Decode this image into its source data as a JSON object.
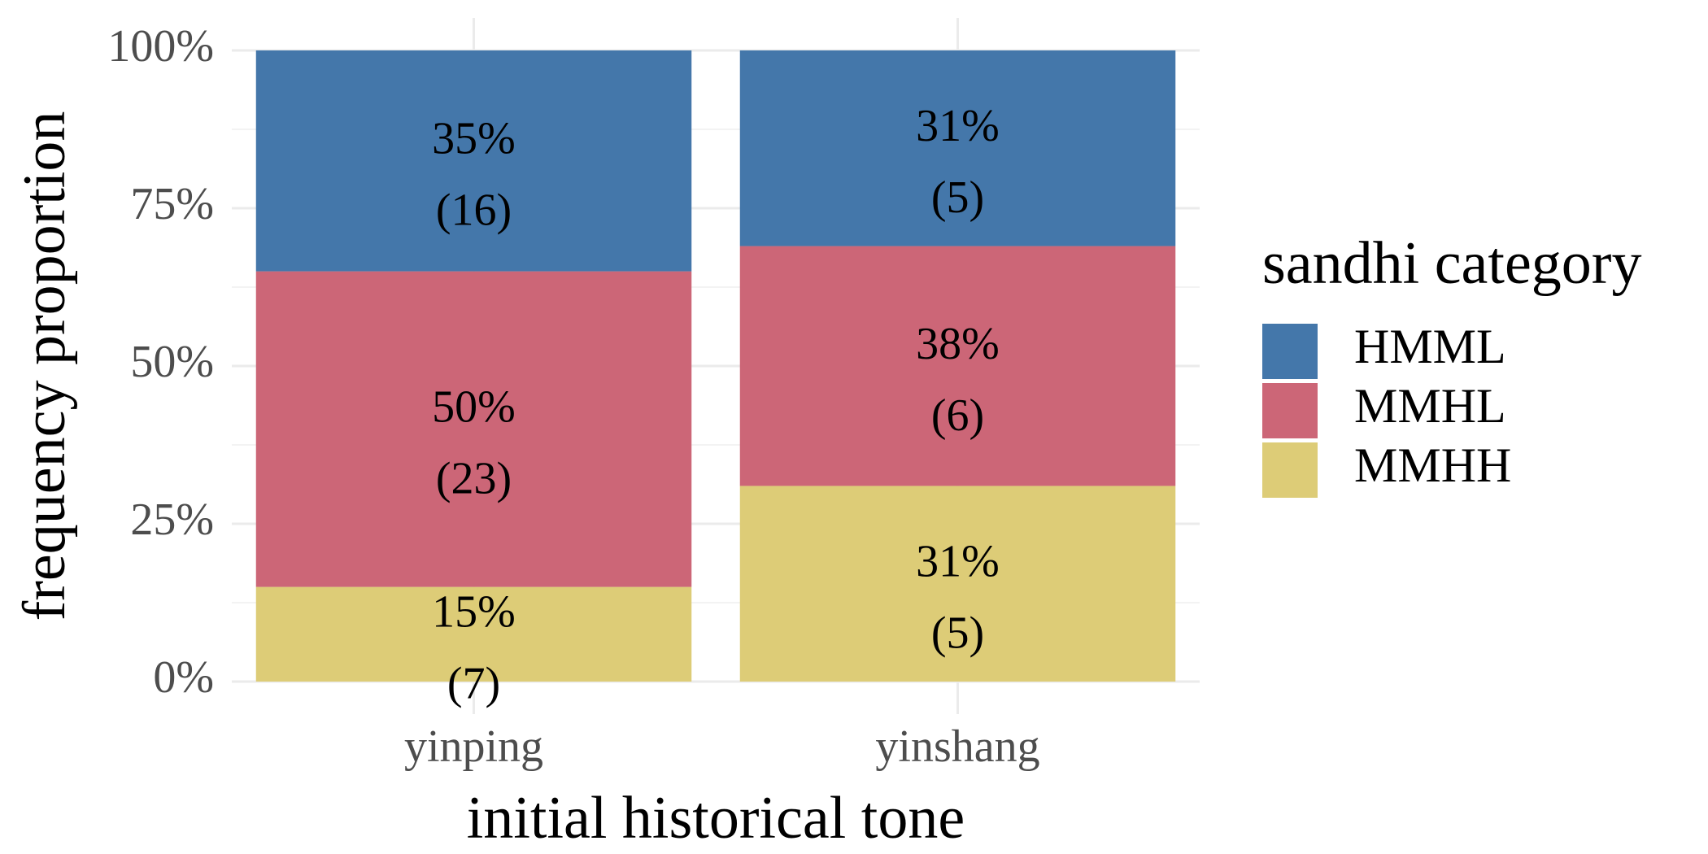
{
  "chart_data": {
    "type": "bar",
    "stacked": true,
    "xlabel": "initial historical tone",
    "ylabel": "frequency proportion",
    "categories": [
      "yinping",
      "yinshang"
    ],
    "ylim": [
      0,
      100
    ],
    "yticks": [
      "0%",
      "25%",
      "50%",
      "75%",
      "100%"
    ],
    "series": [
      {
        "name": "MMHH",
        "color": "#ddcc77",
        "values": [
          15,
          31
        ],
        "labels": [
          "15%",
          "31%"
        ],
        "counts": [
          "(7)",
          "(5)"
        ]
      },
      {
        "name": "MMHL",
        "color": "#cc6677",
        "values": [
          50,
          38
        ],
        "labels": [
          "50%",
          "38%"
        ],
        "counts": [
          "(23)",
          "(6)"
        ]
      },
      {
        "name": "HMML",
        "color": "#4477aa",
        "values": [
          35,
          31
        ],
        "labels": [
          "35%",
          "31%"
        ],
        "counts": [
          "(16)",
          "(5)"
        ]
      }
    ],
    "legend": {
      "title": "sandhi category",
      "position": "right",
      "order": [
        "HMML",
        "MMHL",
        "MMHH"
      ]
    },
    "grid": true
  }
}
